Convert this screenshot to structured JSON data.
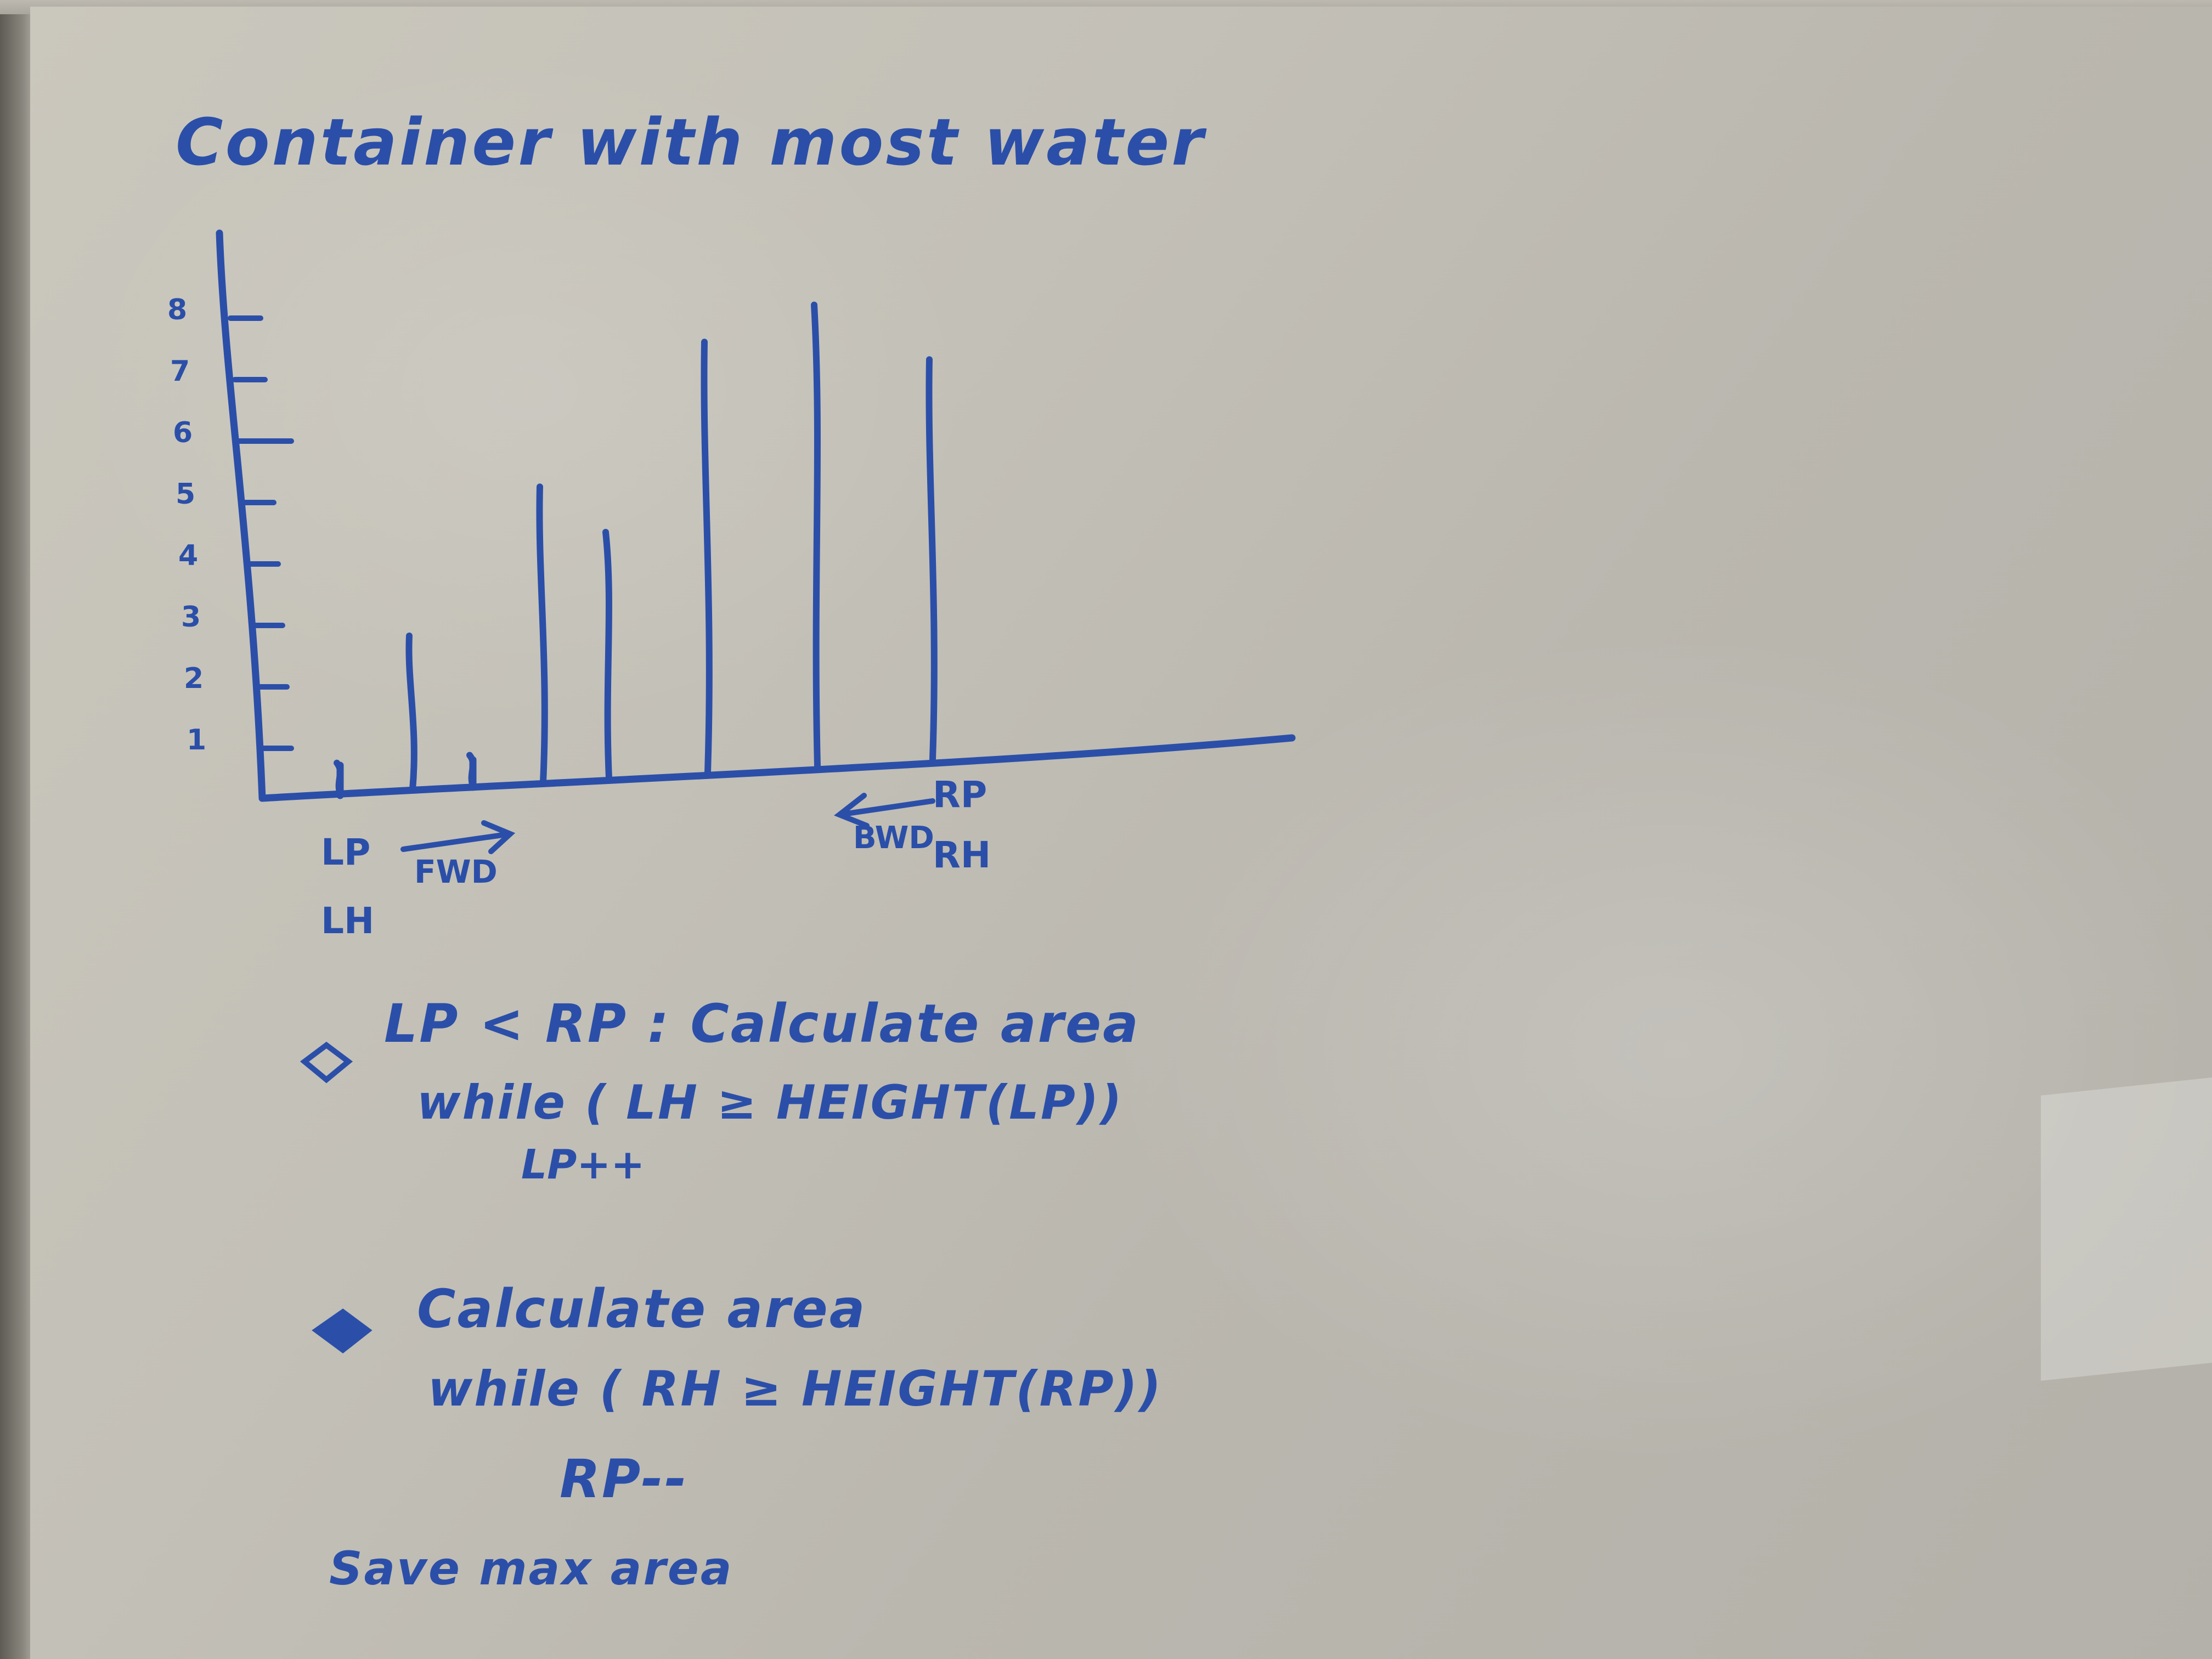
{
  "whiteboard": {
    "title": "Container with most water",
    "y_axis_ticks": [
      "8",
      "7",
      "6",
      "5",
      "4",
      "3",
      "2",
      "1"
    ],
    "bar_heights": [
      0.5,
      2.5,
      0.5,
      4.8,
      4.0,
      7.0,
      7.5,
      6.5
    ],
    "pointer_labels": {
      "left_pointer": "LP",
      "left_height": "LH",
      "forward": "FWD",
      "right_pointer": "RP",
      "right_height": "RH",
      "backward": "BWD"
    },
    "steps": [
      {
        "bullet_style": "hollow",
        "line1": "LP < RP : Calculate area",
        "line2": "while ( LH ≥ HEIGHT(LP))",
        "line3": "LP++"
      },
      {
        "bullet_style": "filled",
        "line1": "Calculate area",
        "line2": "while ( RH ≥ HEIGHT(RP))",
        "line3": "RP--"
      }
    ],
    "footer": "Save max area",
    "ink_color": "#2b4fa8"
  }
}
